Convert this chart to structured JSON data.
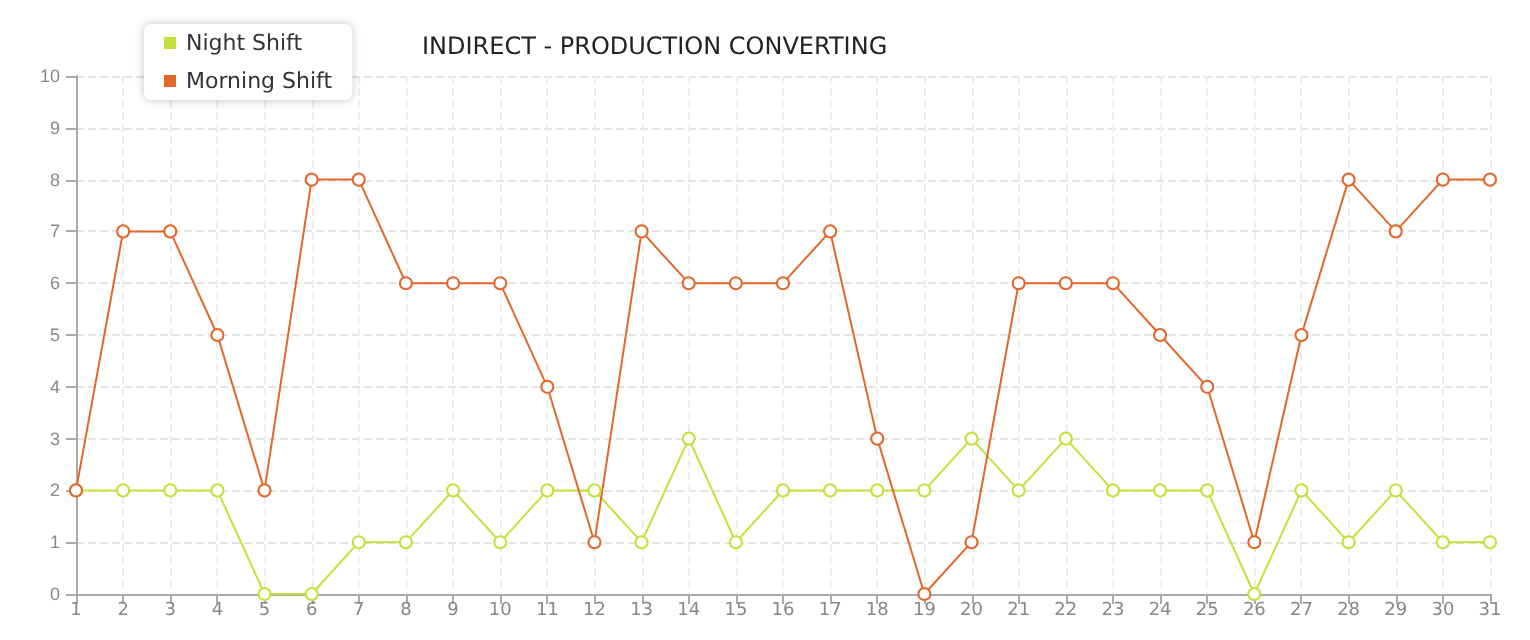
{
  "chart_data": {
    "type": "line",
    "title": "INDIRECT - PRODUCTION CONVERTING",
    "x": [
      1,
      2,
      3,
      4,
      5,
      6,
      7,
      8,
      9,
      10,
      11,
      12,
      13,
      14,
      15,
      16,
      17,
      18,
      19,
      20,
      21,
      22,
      23,
      24,
      25,
      26,
      27,
      28,
      29,
      30,
      31
    ],
    "xlim": [
      1,
      31
    ],
    "xticks": [
      1,
      2,
      3,
      4,
      5,
      6,
      7,
      8,
      9,
      10,
      11,
      12,
      13,
      14,
      15,
      16,
      17,
      18,
      19,
      20,
      21,
      22,
      23,
      24,
      25,
      26,
      27,
      28,
      29,
      30,
      31
    ],
    "series": [
      {
        "name": "Night Shift",
        "color": "#c5e03a",
        "values": [
          2,
          2,
          2,
          2,
          0,
          0,
          1,
          1,
          2,
          1,
          2,
          2,
          1,
          3,
          1,
          2,
          2,
          2,
          2,
          3,
          2,
          3,
          2,
          2,
          2,
          0,
          2,
          1,
          2,
          1,
          1
        ]
      },
      {
        "name": "Morning Shift",
        "color": "#e2672b",
        "values": [
          2,
          7,
          7,
          5,
          2,
          8,
          8,
          6,
          6,
          6,
          4,
          1,
          7,
          6,
          6,
          6,
          7,
          3,
          0,
          1,
          6,
          6,
          6,
          5,
          4,
          1,
          5,
          8,
          7,
          8,
          8
        ]
      }
    ],
    "ylim": [
      0,
      10
    ],
    "yticks": [
      0,
      1,
      2,
      3,
      4,
      5,
      6,
      7,
      8,
      9,
      10
    ],
    "grid": true,
    "legend": "top left",
    "marker": "circle",
    "line_style": "solid"
  }
}
